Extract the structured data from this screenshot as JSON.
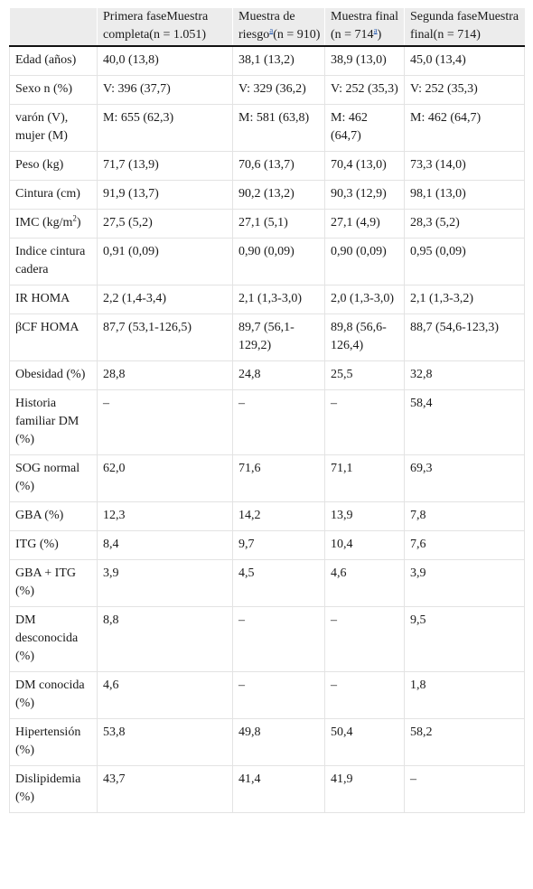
{
  "header": {
    "col0": "",
    "col1": "Primera faseMuestra completa(n = 1.051)",
    "col2_pre": "Muestra de riesgo",
    "col2_ref": "a",
    "col2_post": "(n = 910)",
    "col3_pre": "Muestra final (n = 714",
    "col3_ref": "a",
    "col3_post": ")",
    "col4": "Segunda faseMuestra final(n = 714)"
  },
  "rows": [
    {
      "label": "Edad (años)",
      "c1": "40,0 (13,8)",
      "c2": "38,1 (13,2)",
      "c3": "38,9 (13,0)",
      "c4": "45,0 (13,4)"
    },
    {
      "label": "Sexo n (%)",
      "c1": "V: 396 (37,7)",
      "c2": "V: 329 (36,2)",
      "c3": "V: 252 (35,3)",
      "c4": "V: 252 (35,3)"
    },
    {
      "label": "varón (V), mujer (M)",
      "c1": "M: 655 (62,3)",
      "c2": "M: 581 (63,8)",
      "c3": "M: 462 (64,7)",
      "c4": "M: 462 (64,7)"
    },
    {
      "label": "Peso (kg)",
      "c1": "71,7 (13,9)",
      "c2": "70,6 (13,7)",
      "c3": "70,4 (13,0)",
      "c4": "73,3 (14,0)"
    },
    {
      "label": "Cintura (cm)",
      "c1": "91,9 (13,7)",
      "c2": "90,2 (13,2)",
      "c3": "90,3 (12,9)",
      "c4": "98,1 (13,0)"
    },
    {
      "label_pre": "IMC (kg/m",
      "label_sup": "2",
      "label_post": ")",
      "c1": "27,5 (5,2)",
      "c2": "27,1 (5,1)",
      "c3": "27,1 (4,9)",
      "c4": "28,3 (5,2)"
    },
    {
      "label": "Indice cintura cadera",
      "c1": "0,91 (0,09)",
      "c2": "0,90 (0,09)",
      "c3": "0,90 (0,09)",
      "c4": "0,95 (0,09)"
    },
    {
      "label": "IR HOMA",
      "c1": "2,2 (1,4-3,4)",
      "c2": "2,1 (1,3-3,0)",
      "c3": "2,0 (1,3-3,0)",
      "c4": "2,1 (1,3-3,2)"
    },
    {
      "label": "βCF HOMA",
      "c1": "87,7 (53,1-126,5)",
      "c2": "89,7 (56,1-129,2)",
      "c3": "89,8 (56,6-126,4)",
      "c4": "88,7 (54,6-123,3)"
    },
    {
      "label": "Obesidad (%)",
      "c1": "28,8",
      "c2": "24,8",
      "c3": "25,5",
      "c4": "32,8"
    },
    {
      "label": "Historia familiar DM (%)",
      "c1": "–",
      "c2": "–",
      "c3": "–",
      "c4": "58,4"
    },
    {
      "label": "SOG normal (%)",
      "c1": "62,0",
      "c2": "71,6",
      "c3": "71,1",
      "c4": "69,3"
    },
    {
      "label": "GBA (%)",
      "c1": "12,3",
      "c2": "14,2",
      "c3": "13,9",
      "c4": "7,8"
    },
    {
      "label": "ITG (%)",
      "c1": "8,4",
      "c2": "9,7",
      "c3": "10,4",
      "c4": "7,6"
    },
    {
      "label": "GBA + ITG (%)",
      "c1": "3,9",
      "c2": "4,5",
      "c3": "4,6",
      "c4": "3,9"
    },
    {
      "label": "DM desconocida (%)",
      "c1": "8,8",
      "c2": "–",
      "c3": "–",
      "c4": "9,5"
    },
    {
      "label": "DM conocida (%)",
      "c1": "4,6",
      "c2": "–",
      "c3": "–",
      "c4": "1,8"
    },
    {
      "label": "Hipertensión (%)",
      "c1": "53,8",
      "c2": "49,8",
      "c3": "50,4",
      "c4": "58,2"
    },
    {
      "label": "Dislipidemia (%)",
      "c1": "43,7",
      "c2": "41,4",
      "c3": "41,9",
      "c4": "–"
    }
  ]
}
